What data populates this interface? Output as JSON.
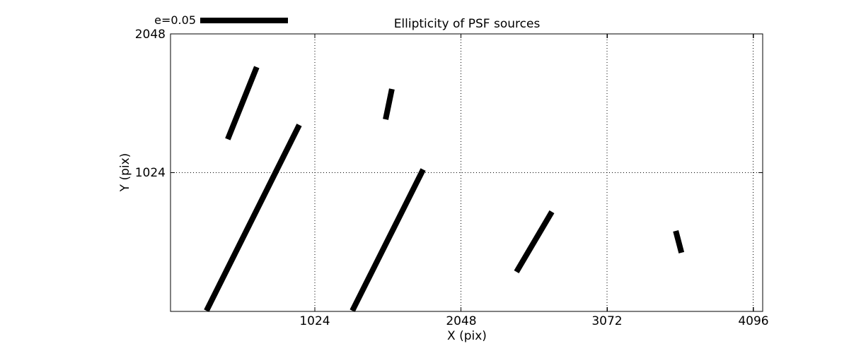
{
  "chart_data": {
    "type": "line",
    "subtype": "ellipticity-whisker-map",
    "title": "Ellipticity of PSF sources",
    "xlabel": "X (pix)",
    "ylabel": "Y (pix)",
    "x_ticks": [
      1024,
      2048,
      3072,
      4096
    ],
    "y_ticks": [
      1024,
      2048
    ],
    "xlim": [
      13,
      4162
    ],
    "ylim": [
      0,
      2048
    ],
    "grid": "dotted",
    "legend_label": "e=0.05",
    "legend_scale_e": 0.05,
    "segments": [
      {
        "x1": 414,
        "y1": 1271,
        "x2": 617,
        "y2": 1803
      },
      {
        "x1": 265,
        "y1": 5,
        "x2": 915,
        "y2": 1376
      },
      {
        "x1": 1520,
        "y1": 1417,
        "x2": 1564,
        "y2": 1641
      },
      {
        "x1": 1287,
        "y1": 5,
        "x2": 1783,
        "y2": 1047
      },
      {
        "x1": 2437,
        "y1": 292,
        "x2": 2685,
        "y2": 735
      },
      {
        "x1": 3553,
        "y1": 594,
        "x2": 3593,
        "y2": 433
      }
    ],
    "colors": {
      "line": "#000000",
      "text": "#000000",
      "background": "#ffffff"
    }
  }
}
